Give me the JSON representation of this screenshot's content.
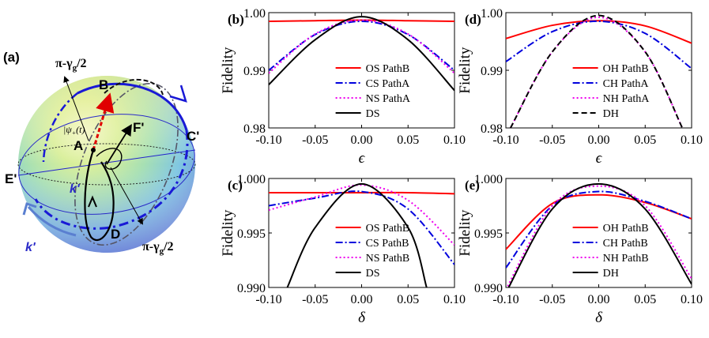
{
  "figure": {
    "sphere_panel": {
      "label": "(a)",
      "angle_top": "π-γ",
      "angle_top_sub": "g",
      "angle_top_tail": "/2",
      "angle_bottom": "π-γ",
      "angle_bottom_sub": "g",
      "angle_bottom_tail": "/2",
      "points": {
        "A": "A",
        "B": "B",
        "C": "C'",
        "D": "D",
        "E": "E'",
        "F": "F'"
      },
      "state_label": "|ψ",
      "state_label_sub": "+",
      "state_label_tail": "(t)",
      "k_inner": "k'",
      "k_outer": "k'"
    },
    "colors": {
      "OS": "#ff0000",
      "CS": "#0000dd",
      "NS": "#ee00ee",
      "DS": "#000000"
    }
  },
  "chart_data": [
    {
      "id": "b",
      "panel_label": "(b)",
      "type": "line",
      "xlabel": "ϵ",
      "ylabel": "Fidelity",
      "xlim": [
        -0.1,
        0.1
      ],
      "ylim": [
        0.98,
        1.0
      ],
      "xticks": [
        "-0.10",
        "-0.05",
        "0.00",
        "0.05",
        "0.10"
      ],
      "yticks": [
        "0.98",
        "0.99",
        "1.00"
      ],
      "legend_position": "bottom-center",
      "series": [
        {
          "name": "OS PathB",
          "style": "solid",
          "color": "#ff0000",
          "x": [
            -0.1,
            -0.05,
            0,
            0.05,
            0.1
          ],
          "y": [
            0.9985,
            0.9986,
            0.9987,
            0.9986,
            0.9985
          ]
        },
        {
          "name": "CS PathA",
          "style": "dashdot",
          "color": "#0000dd",
          "x": [
            -0.1,
            -0.05,
            0,
            0.05,
            0.1
          ],
          "y": [
            0.99,
            0.9962,
            0.9985,
            0.9962,
            0.99
          ]
        },
        {
          "name": "NS PathA",
          "style": "dotted",
          "color": "#ee00ee",
          "x": [
            -0.1,
            -0.05,
            0,
            0.05,
            0.1
          ],
          "y": [
            0.9895,
            0.9963,
            0.9987,
            0.9963,
            0.9895
          ]
        },
        {
          "name": "DS",
          "style": "solid",
          "color": "#000000",
          "x": [
            -0.1,
            -0.05,
            0,
            0.05,
            0.1
          ],
          "y": [
            0.9875,
            0.9953,
            0.9993,
            0.9953,
            0.9865
          ]
        }
      ]
    },
    {
      "id": "c",
      "panel_label": "(c)",
      "type": "line",
      "xlabel": "δ",
      "ylabel": "Fidelity",
      "xlim": [
        -0.1,
        0.1
      ],
      "ylim": [
        0.99,
        1.0
      ],
      "xticks": [
        "-0.10",
        "-0.05",
        "0.00",
        "0.05",
        "0.10"
      ],
      "yticks": [
        "0.990",
        "0.995",
        "1.000"
      ],
      "legend_position": "bottom-center",
      "series": [
        {
          "name": "OS PathB",
          "style": "solid",
          "color": "#ff0000",
          "x": [
            -0.1,
            -0.05,
            0,
            0.05,
            0.1
          ],
          "y": [
            0.9987,
            0.9987,
            0.9987,
            0.9987,
            0.9986
          ]
        },
        {
          "name": "CS PathB",
          "style": "dashdot",
          "color": "#0000dd",
          "x": [
            -0.1,
            -0.05,
            0,
            0.05,
            0.1
          ],
          "y": [
            0.9975,
            0.9982,
            0.9988,
            0.9972,
            0.9921
          ]
        },
        {
          "name": "NS PathB",
          "style": "dotted",
          "color": "#ee00ee",
          "x": [
            -0.1,
            -0.05,
            0,
            0.05,
            0.1
          ],
          "y": [
            0.9971,
            0.9983,
            0.9994,
            0.998,
            0.9939
          ]
        },
        {
          "name": "DS",
          "style": "solid",
          "color": "#000000",
          "x": [
            -0.08,
            -0.05,
            0,
            0.05,
            0.07
          ],
          "y": [
            0.99,
            0.9955,
            0.9995,
            0.9955,
            0.99
          ]
        }
      ]
    },
    {
      "id": "d",
      "panel_label": "(d)",
      "type": "line",
      "xlabel": "ϵ",
      "ylabel": "Fidelity",
      "xlim": [
        -0.1,
        0.1
      ],
      "ylim": [
        0.98,
        1.0
      ],
      "xticks": [
        "-0.10",
        "-0.05",
        "0.00",
        "0.05",
        "0.10"
      ],
      "yticks": [
        "0.98",
        "0.99",
        "1.00"
      ],
      "legend_position": "bottom-center",
      "series": [
        {
          "name": "OH PathB",
          "style": "solid",
          "color": "#ff0000",
          "x": [
            -0.1,
            -0.05,
            0,
            0.05,
            0.1
          ],
          "y": [
            0.9955,
            0.9978,
            0.9986,
            0.9977,
            0.9947
          ]
        },
        {
          "name": "CH PathA",
          "style": "dashdot",
          "color": "#0000dd",
          "x": [
            -0.1,
            -0.05,
            0,
            0.05,
            0.1
          ],
          "y": [
            0.9915,
            0.9967,
            0.9985,
            0.9964,
            0.9903
          ]
        },
        {
          "name": "NH PathA",
          "style": "dotted",
          "color": "#ee00ee",
          "x": [
            -0.095,
            -0.05,
            0,
            0.05,
            0.09
          ],
          "y": [
            0.98,
            0.9932,
            0.9992,
            0.9932,
            0.98
          ]
        },
        {
          "name": "DH",
          "style": "dashed",
          "color": "#000000",
          "x": [
            -0.095,
            -0.05,
            0,
            0.05,
            0.09
          ],
          "y": [
            0.98,
            0.9932,
            0.9995,
            0.9932,
            0.98
          ]
        }
      ]
    },
    {
      "id": "e",
      "panel_label": "(e)",
      "type": "line",
      "xlabel": "δ",
      "ylabel": "Fidelity",
      "xlim": [
        -0.1,
        0.1
      ],
      "ylim": [
        0.99,
        1.0
      ],
      "xticks": [
        "-0.10",
        "-0.05",
        "0.00",
        "0.05",
        "0.10"
      ],
      "yticks": [
        "0.990",
        "0.995",
        "1.000"
      ],
      "legend_position": "bottom-center",
      "series": [
        {
          "name": "OH PathB",
          "style": "solid",
          "color": "#ff0000",
          "x": [
            -0.1,
            -0.05,
            0,
            0.05,
            0.1
          ],
          "y": [
            0.9935,
            0.9977,
            0.9985,
            0.9978,
            0.9963
          ]
        },
        {
          "name": "CH PathB",
          "style": "dashdot",
          "color": "#0000dd",
          "x": [
            -0.1,
            -0.05,
            0,
            0.05,
            0.1
          ],
          "y": [
            0.9918,
            0.9975,
            0.9988,
            0.9979,
            0.9963
          ]
        },
        {
          "name": "NH PathB",
          "style": "dotted",
          "color": "#ee00ee",
          "x": [
            -0.1,
            -0.05,
            0,
            0.05,
            0.1
          ],
          "y": [
            0.9898,
            0.9975,
            0.9993,
            0.9975,
            0.9908
          ]
        },
        {
          "name": "DH",
          "style": "solid",
          "color": "#000000",
          "x": [
            -0.1,
            -0.05,
            0,
            0.05,
            0.1
          ],
          "y": [
            0.9895,
            0.9972,
            0.9995,
            0.9972,
            0.9903
          ]
        }
      ]
    }
  ]
}
